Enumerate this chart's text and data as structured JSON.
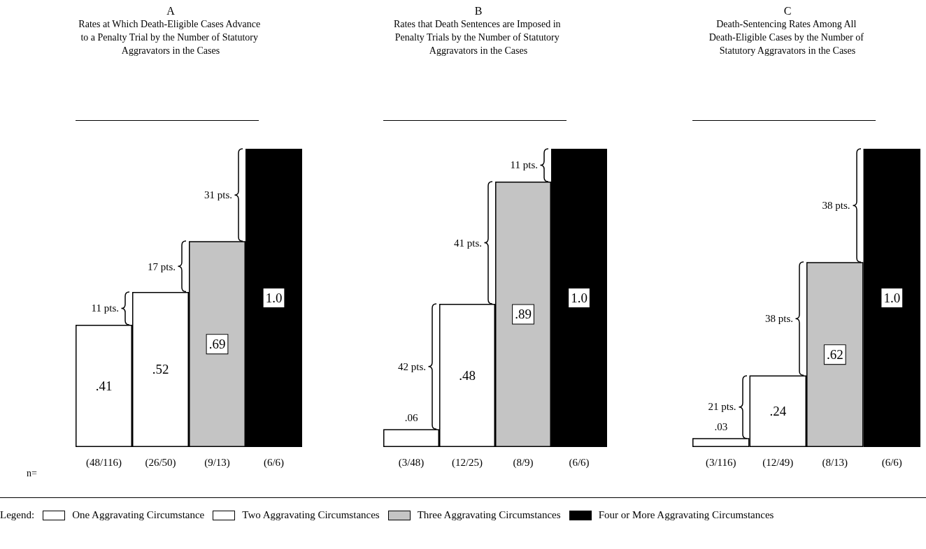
{
  "chart_data": [
    {
      "type": "bar",
      "title": "A",
      "subtitle": "Rates at Which Death-Eligible Cases Advance to a Penalty Trial by the Number of Statutory Aggravators in the Cases",
      "xlabel": "n=",
      "categories": [
        "(48/116)",
        "(26/50)",
        "(9/13)",
        "(6/6)"
      ],
      "stacked": true,
      "tick_labels": "x",
      "legend": "bottom",
      "legend_title": "Legend:",
      "series": [
        {
          "name": "One Aggravating Circumstance",
          "color": "#ffffff",
          "values": [
            0.41,
            null,
            null,
            null
          ],
          "value_labels": [
            ".41",
            null,
            null,
            null
          ]
        },
        {
          "name": "Two Aggravating Circumstances",
          "color": "#ffffff",
          "values": [
            null,
            0.52,
            null,
            null
          ],
          "value_labels": [
            null,
            ".52",
            null,
            null
          ]
        },
        {
          "name": "Three Aggravating Circumstances",
          "color": "#c4c4c4",
          "values": [
            null,
            null,
            0.69,
            null
          ],
          "value_labels": [
            null,
            null,
            ".69",
            null
          ]
        },
        {
          "name": "Four or More Aggravating Circumstances",
          "color": "#000000",
          "values": [
            null,
            null,
            null,
            1.0
          ],
          "value_labels": [
            null,
            null,
            null,
            "1.0"
          ]
        }
      ],
      "annotations": [
        "11 pts.",
        "17 pts.",
        "31 pts."
      ]
    },
    {
      "type": "bar",
      "title": "B",
      "subtitle": "Rates that Death Sentences are Imposed in Penalty Trials by the Number of Statutory Aggravators in the Cases",
      "categories": [
        "(3/48)",
        "(12/25)",
        "(8/9)",
        "(6/6)"
      ],
      "stacked": true,
      "tick_labels": "x",
      "series": [
        {
          "color": "#ffffff",
          "values": [
            0.06,
            null,
            null,
            null
          ],
          "value_labels": [
            ".06",
            null,
            null,
            null
          ]
        },
        {
          "color": "#ffffff",
          "values": [
            null,
            0.48,
            null,
            null
          ],
          "value_labels": [
            null,
            ".48",
            null,
            null
          ]
        },
        {
          "color": "#c4c4c4",
          "values": [
            null,
            null,
            0.89,
            null
          ],
          "value_labels": [
            null,
            null,
            ".89",
            null
          ]
        },
        {
          "color": "#000000",
          "values": [
            null,
            null,
            null,
            1.0
          ],
          "value_labels": [
            null,
            null,
            null,
            "1.0"
          ]
        }
      ],
      "annotations": [
        "42 pts.",
        "41 pts.",
        "11 pts."
      ]
    },
    {
      "type": "bar",
      "title": "C",
      "subtitle": "Death-Sentencing Rates Among All Death-Eligible Cases by the Number of Statutory Aggravators in the Cases",
      "categories": [
        "(3/116)",
        "(12/49)",
        "(8/13)",
        "(6/6)"
      ],
      "stacked": true,
      "tick_labels": "x",
      "series": [
        {
          "color": "#ffffff",
          "values": [
            0.03,
            null,
            null,
            null
          ],
          "value_labels": [
            ".03",
            null,
            null,
            null
          ]
        },
        {
          "color": "#ffffff",
          "values": [
            null,
            0.24,
            null,
            null
          ],
          "value_labels": [
            null,
            ".24",
            null,
            null
          ]
        },
        {
          "color": "#c4c4c4",
          "values": [
            null,
            null,
            0.62,
            null
          ],
          "value_labels": [
            null,
            null,
            ".62",
            null
          ]
        },
        {
          "color": "#000000",
          "values": [
            null,
            null,
            null,
            1.0
          ],
          "value_labels": [
            null,
            null,
            null,
            "1.0"
          ]
        }
      ],
      "annotations": [
        "21 pts.",
        "38 pts.",
        "38 pts."
      ]
    }
  ]
}
